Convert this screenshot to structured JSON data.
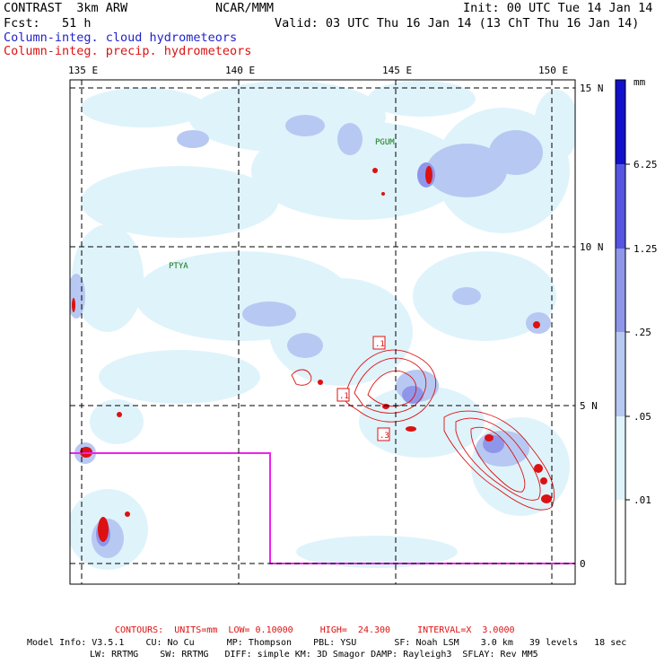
{
  "header": {
    "left_line1": "CONTRAST  3km ARW",
    "center_line1": "NCAR/MMM",
    "right_line1": "Init: 00 UTC Tue 14 Jan 14",
    "left_line2": "Fcst:   51 h",
    "right_line2": "Valid: 03 UTC Thu 16 Jan 14 (13 ChT Thu 16 Jan 14)",
    "field1": "Column-integ. cloud hydrometeors",
    "field2": "Column-integ. precip. hydrometeors"
  },
  "colors": {
    "cloud_text": "#2222cc",
    "precip_text": "#dd1111",
    "contour": "#dd1111",
    "box": "#ee22ee",
    "shade_levels": [
      "#ffffff",
      "#dff3fb",
      "#b7c9f2",
      "#8f96ea",
      "#5555e2",
      "#1111cc"
    ]
  },
  "map": {
    "lon_ticks": [
      "135 E",
      "140 E",
      "145 E",
      "150 E"
    ],
    "lat_ticks": [
      "15 N",
      "10 N",
      "5 N",
      "0"
    ],
    "labels": [
      "PGUM",
      "PTYA"
    ]
  },
  "contour_labels": [
    ".1",
    ".1",
    ".3"
  ],
  "colorbar": {
    "unit": "mm",
    "levels": [
      "6.25",
      "1.25",
      ".25",
      ".05",
      ".01"
    ]
  },
  "footer": {
    "contours": "CONTOURS:  UNITS=mm  LOW= 0.10000     HIGH=  24.300     INTERVAL=X  3.0000",
    "model_line1": "Model Info: V3.5.1    CU: No Cu      MP: Thompson    PBL: YSU       SF: Noah LSM    3.0 km   39 levels   18 sec",
    "model_line2": "LW: RRTMG    SW: RRTMG   DIFF: simple KM: 3D Smagor DAMP: Rayleigh3  SFLAY: Rev MM5"
  }
}
